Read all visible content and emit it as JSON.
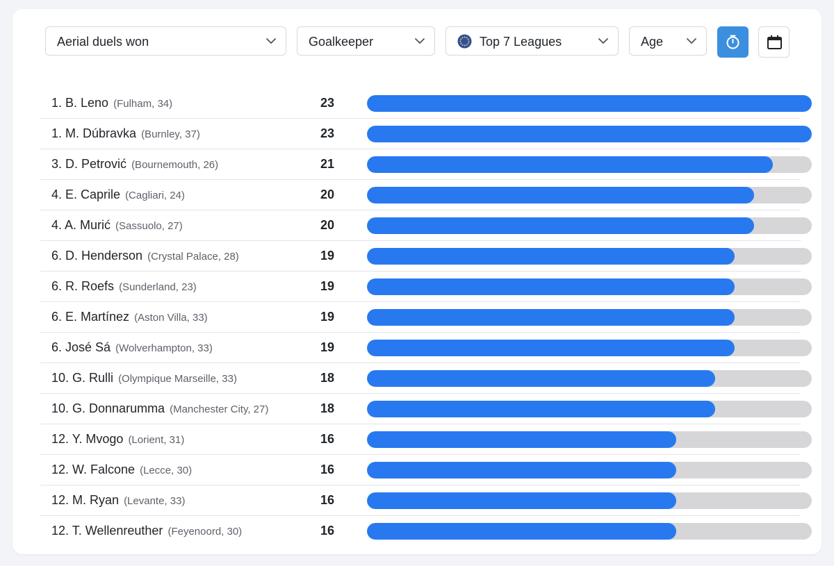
{
  "colors": {
    "bar_fill": "#2879f0",
    "bar_track": "#d6d6d8",
    "active_button": "#3b8fde"
  },
  "filters": {
    "metric": "Aerial duels won",
    "position": "Goalkeeper",
    "league": "Top 7 Leagues",
    "sort": "Age"
  },
  "icons": {
    "league": "globe-icon",
    "timer_button": "stopwatch-icon",
    "calendar_button": "calendar-icon"
  },
  "chart_data": {
    "type": "bar",
    "orientation": "horizontal",
    "max": 23,
    "rows": [
      {
        "name": "1. B. Leno",
        "meta": "(Fulham, 34)",
        "value": 23
      },
      {
        "name": "1. M. Dúbravka",
        "meta": "(Burnley, 37)",
        "value": 23
      },
      {
        "name": "3. D. Petrović",
        "meta": "(Bournemouth, 26)",
        "value": 21
      },
      {
        "name": "4. E. Caprile",
        "meta": "(Cagliari, 24)",
        "value": 20
      },
      {
        "name": "4. A. Murić",
        "meta": "(Sassuolo, 27)",
        "value": 20
      },
      {
        "name": "6. D. Henderson",
        "meta": "(Crystal Palace, 28)",
        "value": 19
      },
      {
        "name": "6. R. Roefs",
        "meta": "(Sunderland, 23)",
        "value": 19
      },
      {
        "name": "6. E. Martínez",
        "meta": "(Aston Villa, 33)",
        "value": 19
      },
      {
        "name": "6. José Sá",
        "meta": "(Wolverhampton, 33)",
        "value": 19
      },
      {
        "name": "10. G. Rulli",
        "meta": "(Olympique Marseille, 33)",
        "value": 18
      },
      {
        "name": "10. G. Donnarumma",
        "meta": "(Manchester City, 27)",
        "value": 18
      },
      {
        "name": "12. Y. Mvogo",
        "meta": "(Lorient, 31)",
        "value": 16
      },
      {
        "name": "12. W. Falcone",
        "meta": "(Lecce, 30)",
        "value": 16
      },
      {
        "name": "12. M. Ryan",
        "meta": "(Levante, 33)",
        "value": 16
      },
      {
        "name": "12. T. Wellenreuther",
        "meta": "(Feyenoord, 30)",
        "value": 16
      }
    ]
  }
}
